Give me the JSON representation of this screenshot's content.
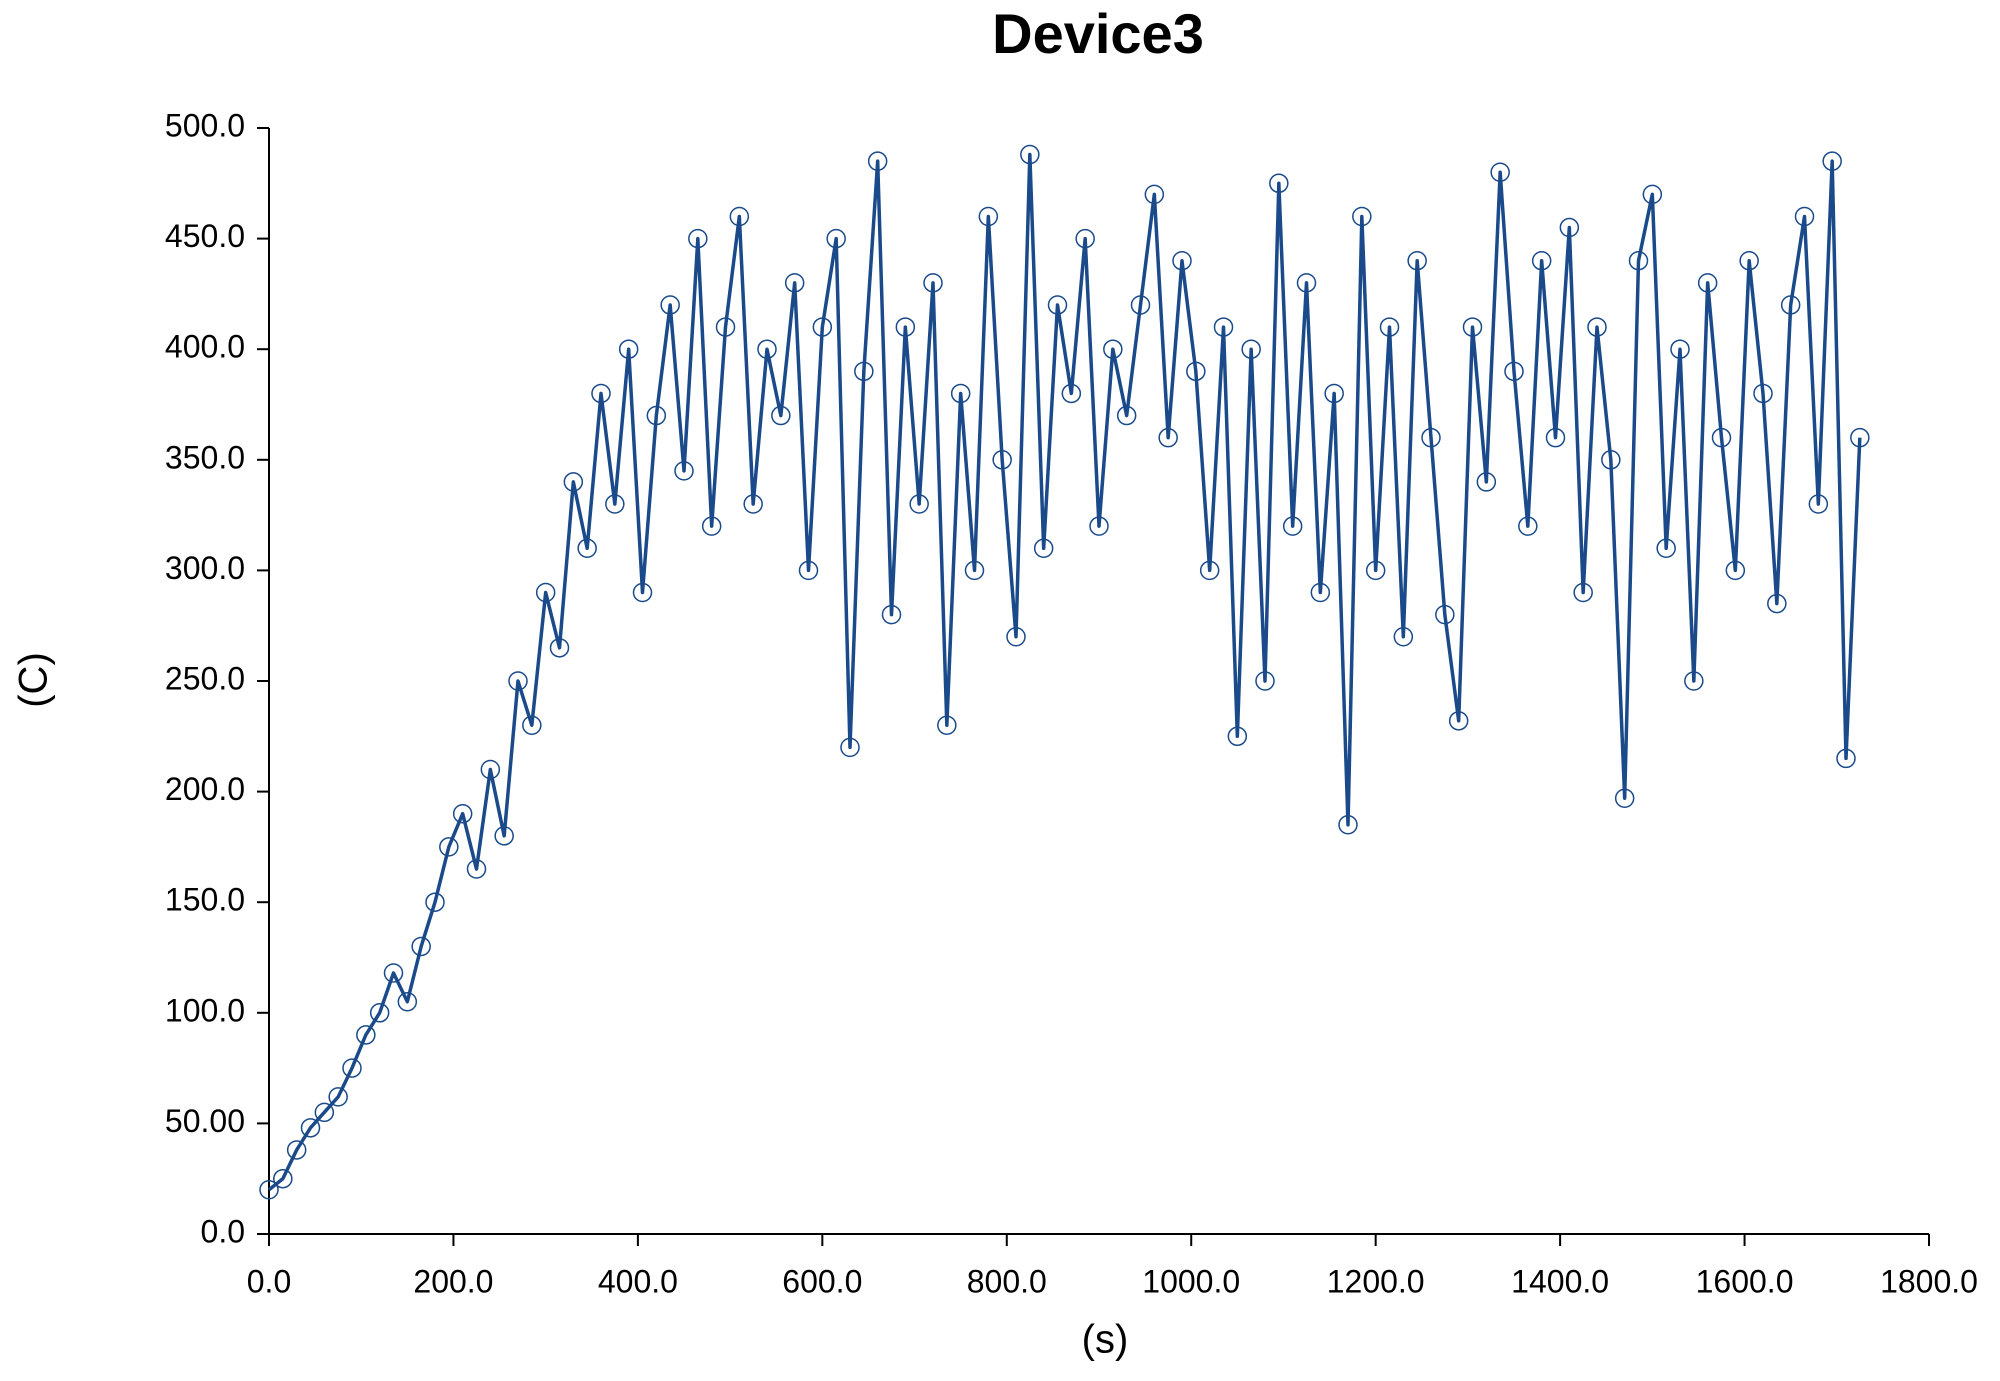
{
  "chart_data": {
    "type": "line",
    "title": "Device3",
    "x_label": "(s)",
    "y_label": "(C)",
    "x": [
      0,
      15,
      30,
      45,
      60,
      75,
      90,
      105,
      120,
      135,
      150,
      165,
      180,
      195,
      210,
      225,
      240,
      255,
      270,
      285,
      300,
      315,
      330,
      345,
      360,
      375,
      390,
      405,
      420,
      435,
      450,
      465,
      480,
      495,
      510,
      525,
      540,
      555,
      570,
      585,
      600,
      615,
      630,
      645,
      660,
      675,
      690,
      705,
      720,
      735,
      750,
      765,
      780,
      795,
      810,
      825,
      840,
      855,
      870,
      885,
      900,
      915,
      930,
      945,
      960,
      975,
      990,
      1005,
      1020,
      1035,
      1050,
      1065,
      1080,
      1095,
      1110,
      1125,
      1140,
      1155,
      1170,
      1185,
      1200,
      1215,
      1230,
      1245,
      1260,
      1275,
      1290,
      1305,
      1320,
      1335,
      1350,
      1365,
      1380,
      1395,
      1410,
      1425,
      1440,
      1455,
      1470,
      1485,
      1500,
      1515,
      1530,
      1545,
      1560,
      1575,
      1590,
      1605,
      1620,
      1635,
      1650,
      1665,
      1680,
      1695,
      1710,
      1725
    ],
    "series": [
      {
        "color": "#1a4a8a",
        "marker": "open-circle",
        "values": [
          20,
          25,
          38,
          48,
          55,
          62,
          75,
          90,
          100,
          118,
          105,
          130,
          150,
          175,
          190,
          165,
          210,
          180,
          250,
          230,
          290,
          265,
          340,
          310,
          380,
          330,
          400,
          290,
          370,
          420,
          345,
          450,
          320,
          410,
          460,
          330,
          400,
          370,
          430,
          300,
          410,
          450,
          220,
          390,
          485,
          280,
          410,
          330,
          430,
          230,
          380,
          300,
          460,
          350,
          270,
          488,
          310,
          420,
          380,
          450,
          320,
          400,
          370,
          420,
          470,
          360,
          440,
          390,
          300,
          410,
          225,
          400,
          250,
          475,
          320,
          430,
          290,
          380,
          185,
          460,
          300,
          410,
          270,
          440,
          360,
          280,
          232,
          410,
          340,
          480,
          390,
          320,
          440,
          360,
          455,
          290,
          410,
          350,
          197,
          440,
          470,
          310,
          400,
          250,
          430,
          360,
          300,
          440,
          380,
          285,
          420,
          460,
          330,
          485,
          215,
          360
        ]
      }
    ],
    "xlim": [
      0,
      1800
    ],
    "xticks": [
      {
        "value": 0,
        "label": "0.0"
      },
      {
        "value": 200,
        "label": "200.0"
      },
      {
        "value": 400,
        "label": "400.0"
      },
      {
        "value": 600,
        "label": "600.0"
      },
      {
        "value": 800,
        "label": "800.0"
      },
      {
        "value": 1000,
        "label": "1000.0"
      },
      {
        "value": 1200,
        "label": "1200.0"
      },
      {
        "value": 1400,
        "label": "1400.0"
      },
      {
        "value": 1600,
        "label": "1600.0"
      },
      {
        "value": 1800,
        "label": "1800.0"
      }
    ],
    "ylim": [
      0,
      500
    ],
    "yticks": [
      {
        "value": 0,
        "label": "0.0"
      },
      {
        "value": 50,
        "label": "50.00"
      },
      {
        "value": 100,
        "label": "100.0"
      },
      {
        "value": 150,
        "label": "150.0"
      },
      {
        "value": 200,
        "label": "200.0"
      },
      {
        "value": 250,
        "label": "250.0"
      },
      {
        "value": 300,
        "label": "300.0"
      },
      {
        "value": 350,
        "label": "350.0"
      },
      {
        "value": 400,
        "label": "400.0"
      },
      {
        "value": 450,
        "label": "450.0"
      },
      {
        "value": 500,
        "label": "500.0"
      }
    ],
    "grid": false
  }
}
